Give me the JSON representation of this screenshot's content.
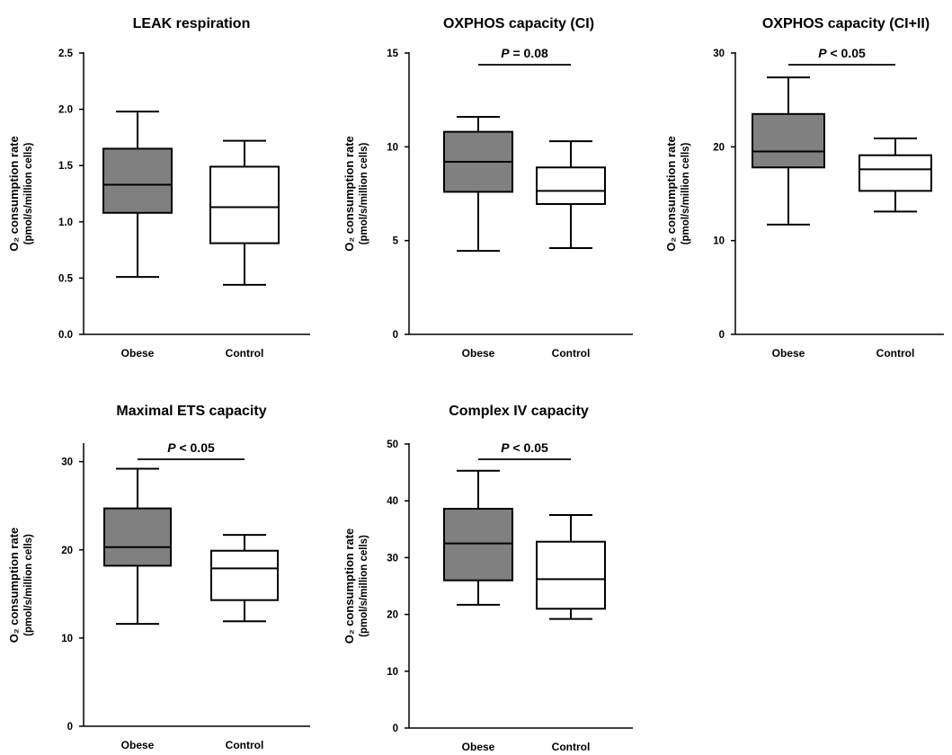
{
  "ylabel_line1": "O₂ consumption rate",
  "ylabel_line2": "(pmol/s/million cells)",
  "chart_data": [
    {
      "type": "box",
      "title": "LEAK respiration",
      "categories": [
        "Obese",
        "Control"
      ],
      "ylim": [
        0,
        2.5
      ],
      "yticks": [
        "0.0",
        "0.5",
        "1.0",
        "1.5",
        "2.0",
        "2.5"
      ],
      "significance": "",
      "boxes": [
        {
          "name": "Obese",
          "fill": "#808080",
          "min": 0.51,
          "q1": 1.08,
          "median": 1.33,
          "q3": 1.65,
          "max": 1.98
        },
        {
          "name": "Control",
          "fill": "#ffffff",
          "min": 0.44,
          "q1": 0.81,
          "median": 1.13,
          "q3": 1.49,
          "max": 1.72
        }
      ]
    },
    {
      "type": "box",
      "title": "OXPHOS capacity (CI)",
      "categories": [
        "Obese",
        "Control"
      ],
      "ylim": [
        0,
        15
      ],
      "yticks": [
        "0",
        "5",
        "10",
        "15"
      ],
      "significance": "P = 0.08",
      "boxes": [
        {
          "name": "Obese",
          "fill": "#808080",
          "min": 4.45,
          "q1": 7.6,
          "median": 9.2,
          "q3": 10.8,
          "max": 11.6
        },
        {
          "name": "Control",
          "fill": "#ffffff",
          "min": 4.6,
          "q1": 6.95,
          "median": 7.65,
          "q3": 8.9,
          "max": 10.3
        }
      ]
    },
    {
      "type": "box",
      "title": "OXPHOS capacity (CI+II)",
      "categories": [
        "Obese",
        "Control"
      ],
      "ylim": [
        0,
        30
      ],
      "yticks": [
        "0",
        "10",
        "20",
        "30"
      ],
      "significance": "P < 0.05",
      "boxes": [
        {
          "name": "Obese",
          "fill": "#808080",
          "min": 11.7,
          "q1": 17.8,
          "median": 19.5,
          "q3": 23.5,
          "max": 27.4
        },
        {
          "name": "Control",
          "fill": "#ffffff",
          "min": 13.1,
          "q1": 15.3,
          "median": 17.6,
          "q3": 19.1,
          "max": 20.9
        }
      ]
    },
    {
      "type": "box",
      "title": "Maximal ETS capacity",
      "categories": [
        "Obese",
        "Control"
      ],
      "ylim": [
        0,
        32
      ],
      "yticks": [
        "0",
        "10",
        "20",
        "30"
      ],
      "significance": "P < 0.05",
      "boxes": [
        {
          "name": "Obese",
          "fill": "#808080",
          "min": 11.6,
          "q1": 18.2,
          "median": 20.3,
          "q3": 24.7,
          "max": 29.2
        },
        {
          "name": "Control",
          "fill": "#ffffff",
          "min": 11.9,
          "q1": 14.3,
          "median": 17.9,
          "q3": 19.9,
          "max": 21.7
        }
      ]
    },
    {
      "type": "box",
      "title": "Complex IV capacity",
      "categories": [
        "Obese",
        "Control"
      ],
      "ylim": [
        0,
        50
      ],
      "yticks": [
        "0",
        "10",
        "20",
        "30",
        "40",
        "50"
      ],
      "significance": "P < 0.05",
      "boxes": [
        {
          "name": "Obese",
          "fill": "#808080",
          "min": 21.7,
          "q1": 26.0,
          "median": 32.5,
          "q3": 38.6,
          "max": 45.3
        },
        {
          "name": "Control",
          "fill": "#ffffff",
          "min": 19.2,
          "q1": 21.0,
          "median": 26.2,
          "q3": 32.8,
          "max": 37.5
        }
      ]
    }
  ]
}
